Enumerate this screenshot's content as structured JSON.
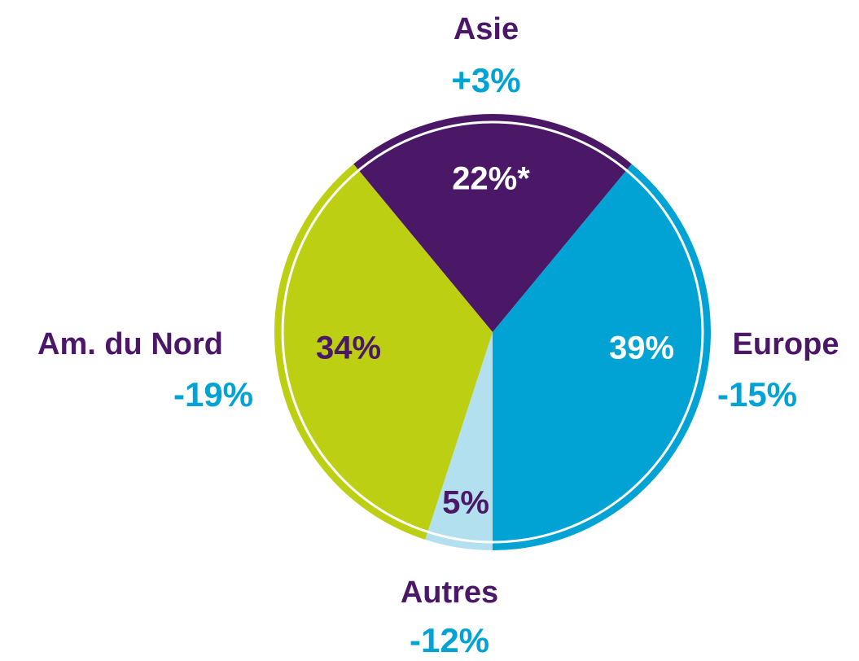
{
  "chart_data": {
    "type": "pie",
    "categories": [
      "Asie",
      "Europe",
      "Autres",
      "Am. du Nord"
    ],
    "values": [
      22,
      39,
      5,
      34
    ],
    "value_labels": [
      "22%*",
      "39%",
      "5%",
      "34%"
    ],
    "colors": [
      "#4b1767",
      "#00a3d3",
      "#b2e0ee",
      "#bccf12"
    ],
    "value_label_colors": [
      "#ffffff",
      "#ffffff",
      "#4b1767",
      "#4b1767"
    ],
    "changes": [
      3,
      -15,
      -12,
      -19
    ],
    "change_labels": [
      "+3%",
      "-15%",
      "-12%",
      "-19%"
    ]
  }
}
